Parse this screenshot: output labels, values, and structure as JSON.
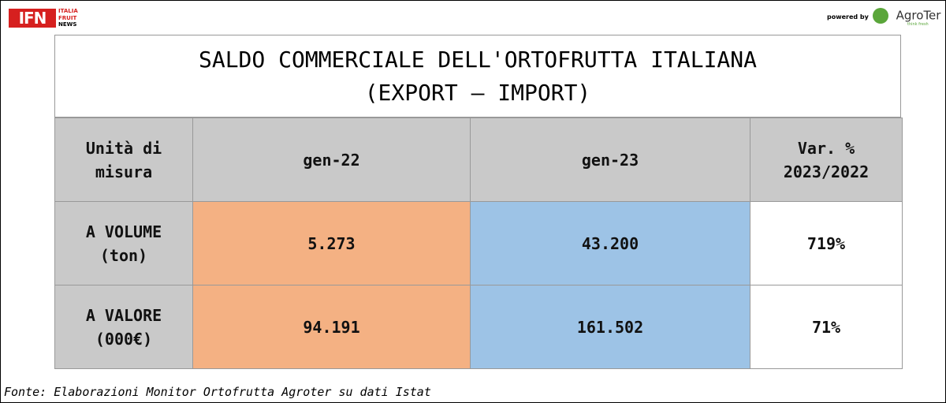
{
  "logo_left": {
    "mark": "IFN",
    "lines": [
      "ITALIA",
      "FRUIT",
      "NEWS"
    ]
  },
  "logo_right": {
    "prefix": "powered by",
    "brand": "AgroTer",
    "tagline": "think fresh"
  },
  "table": {
    "title": [
      "SALDO COMMERCIALE DELL'ORTOFRUTTA ITALIANA",
      "(EXPORT – IMPORT)"
    ],
    "header": [
      [
        "Unità di",
        "misura"
      ],
      [
        "gen-22"
      ],
      [
        "gen-23"
      ],
      [
        "Var. %",
        "2023/2022"
      ]
    ],
    "rows": [
      [
        [
          "A VOLUME",
          "(ton)"
        ],
        [
          "5.273"
        ],
        [
          "43.200"
        ],
        [
          "719%"
        ]
      ],
      [
        [
          "A VALORE",
          "(000€)"
        ],
        [
          "94.191"
        ],
        [
          "161.502"
        ],
        [
          "71%"
        ]
      ]
    ]
  },
  "source": "Fonte: Elaborazioni Monitor Ortofrutta Agroter su dati Istat"
}
